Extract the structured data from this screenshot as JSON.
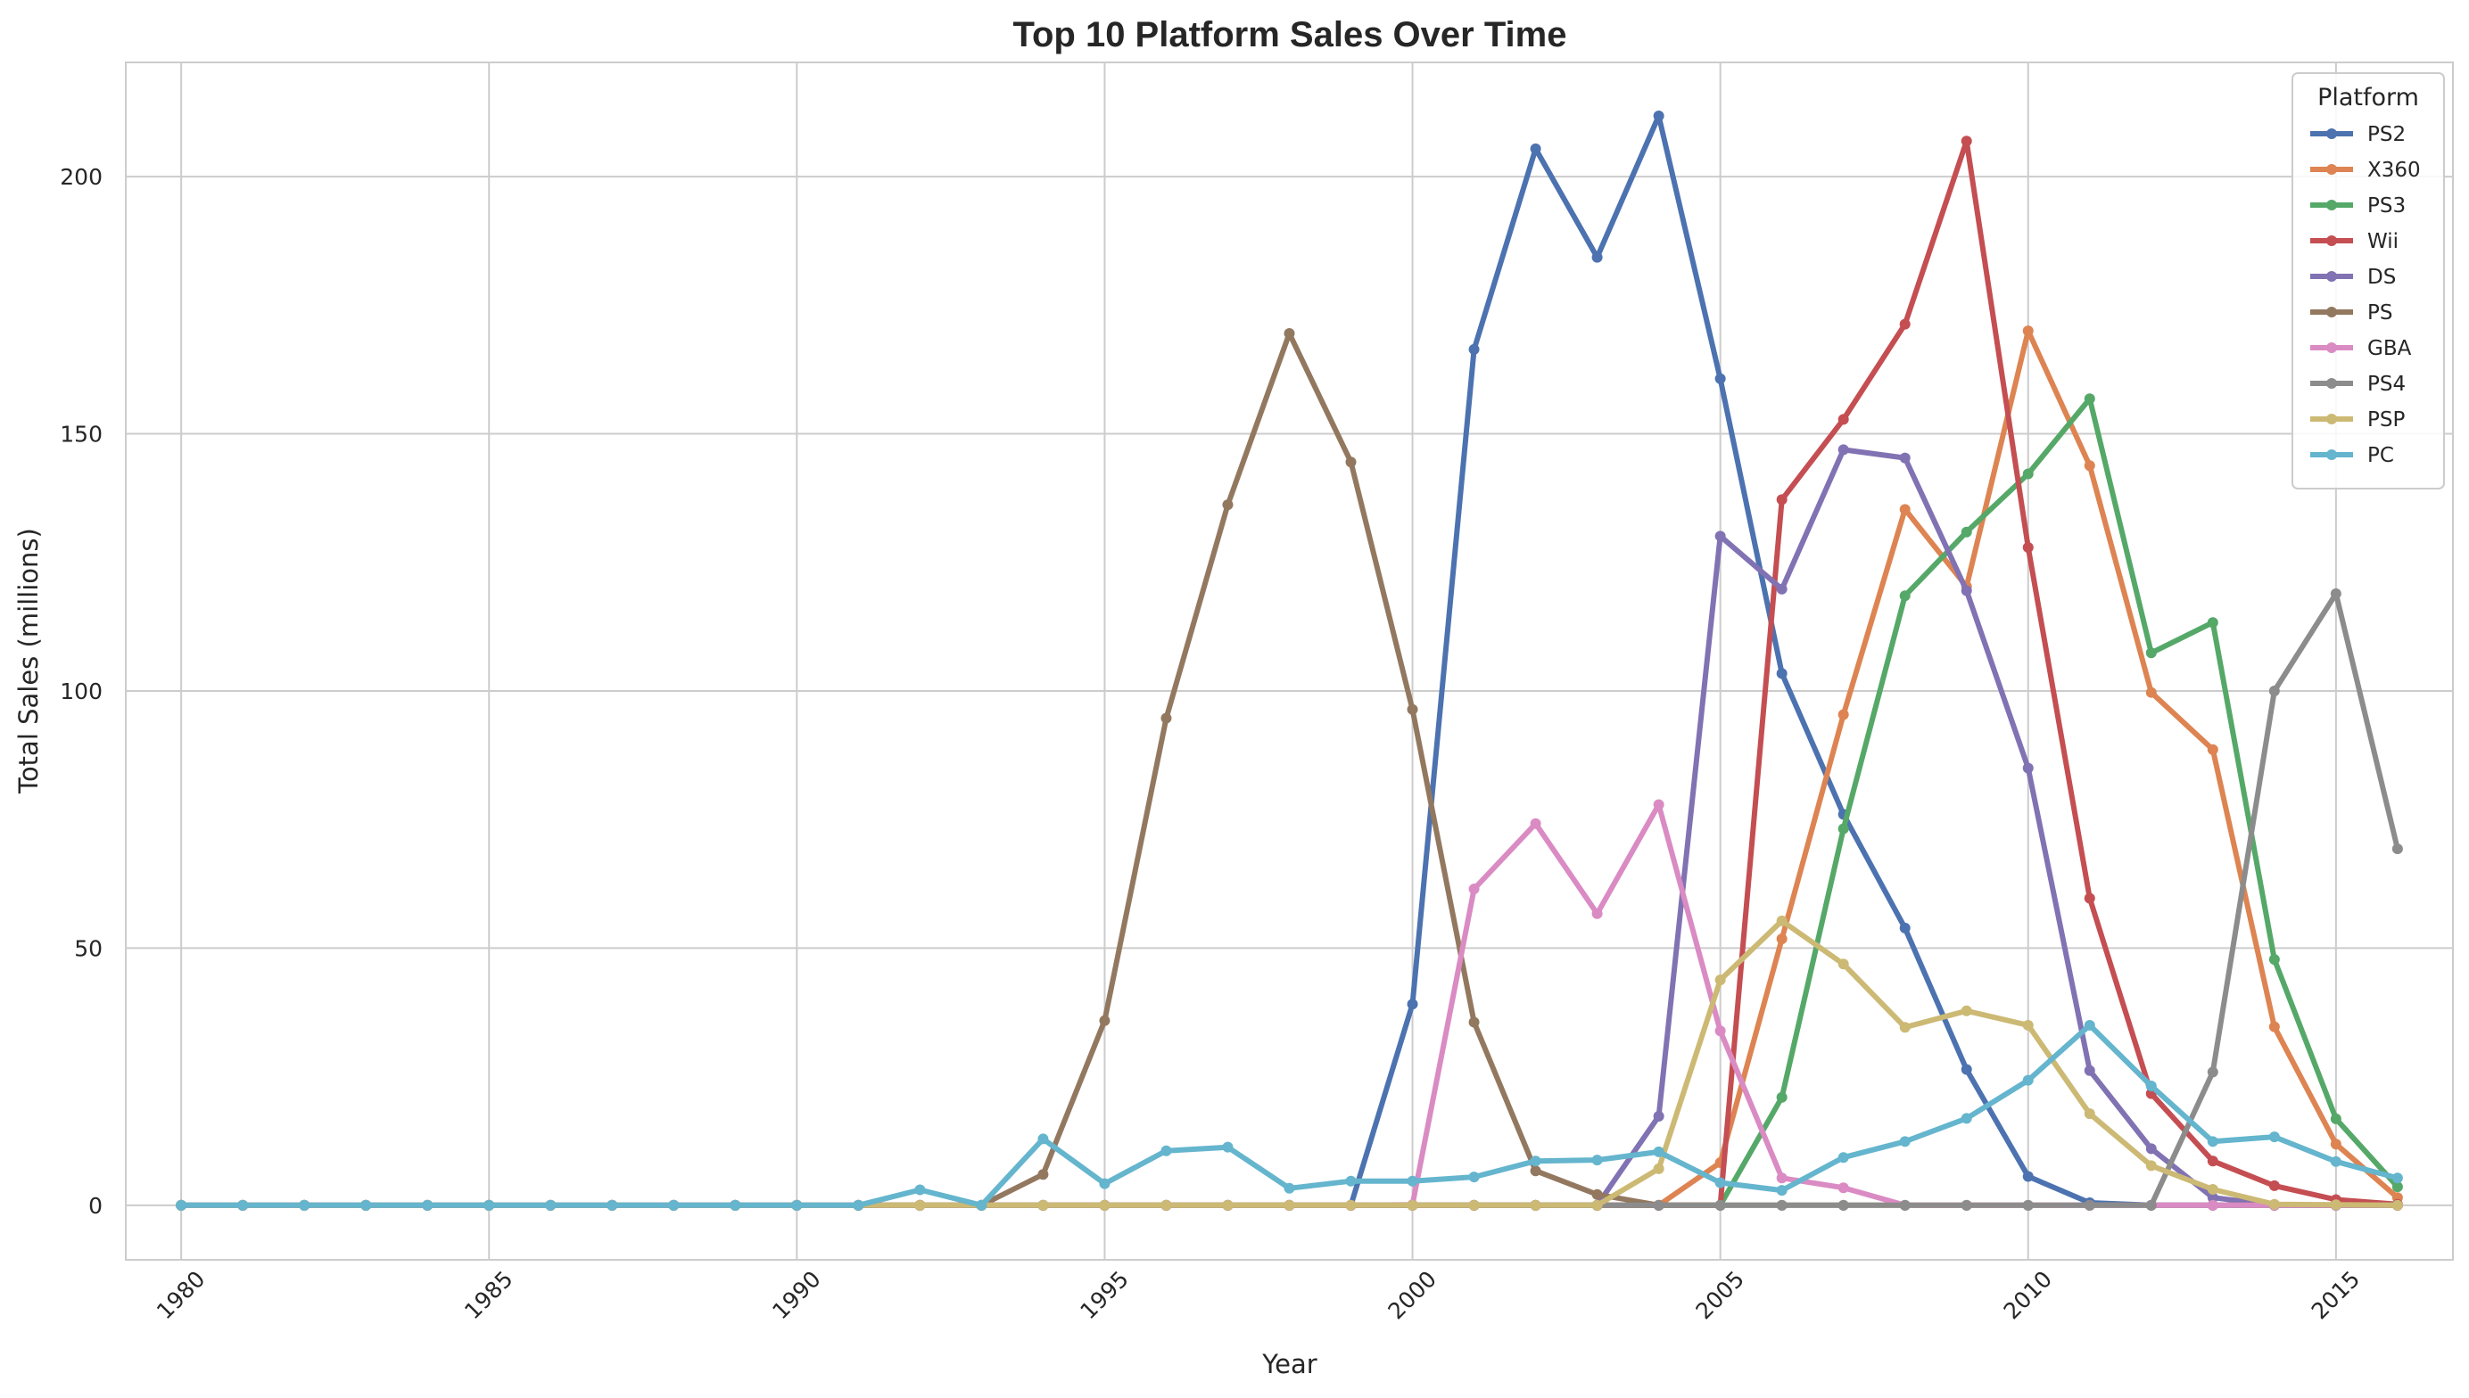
{
  "chart_data": {
    "type": "line",
    "title": "Top 10 Platform Sales Over Time",
    "xlabel": "Year",
    "ylabel": "Total Sales (millions)",
    "xlim": [
      1979.1,
      2016.9
    ],
    "ylim": [
      -10.6,
      222.2
    ],
    "xticks": [
      1980,
      1985,
      1990,
      1995,
      2000,
      2005,
      2010,
      2015
    ],
    "yticks": [
      0,
      50,
      100,
      150,
      200
    ],
    "grid": true,
    "legend": {
      "title": "Platform",
      "position": "top-right"
    },
    "x": [
      1980,
      1981,
      1982,
      1983,
      1984,
      1985,
      1986,
      1987,
      1988,
      1989,
      1990,
      1991,
      1992,
      1993,
      1994,
      1995,
      1996,
      1997,
      1998,
      1999,
      2000,
      2001,
      2002,
      2003,
      2004,
      2005,
      2006,
      2007,
      2008,
      2009,
      2010,
      2011,
      2012,
      2013,
      2014,
      2015,
      2016
    ],
    "series": [
      {
        "name": "PS2",
        "color": "#4c72b0",
        "values": [
          0,
          0,
          0,
          0,
          0,
          0,
          0,
          0,
          0,
          0,
          0,
          0,
          0,
          0,
          0,
          0,
          0,
          0,
          0,
          0,
          39.1,
          166.4,
          205.4,
          184.3,
          211.8,
          160.7,
          103.4,
          76.0,
          53.9,
          26.4,
          5.6,
          0.5,
          0,
          0,
          0,
          0,
          0
        ]
      },
      {
        "name": "X360",
        "color": "#dd8452",
        "values": [
          0,
          0,
          0,
          0,
          0,
          0,
          0,
          0,
          0,
          0,
          0,
          0,
          0,
          0,
          0,
          0,
          0,
          0,
          0,
          0,
          0,
          0,
          0,
          0,
          0,
          8.3,
          51.8,
          95.4,
          135.3,
          120.3,
          170.0,
          143.8,
          99.7,
          88.6,
          34.7,
          11.9,
          1.5
        ]
      },
      {
        "name": "PS3",
        "color": "#55a868",
        "values": [
          0,
          0,
          0,
          0,
          0,
          0,
          0,
          0,
          0,
          0,
          0,
          0,
          0,
          0,
          0,
          0,
          0,
          0,
          0,
          0,
          0,
          0,
          0,
          0,
          0,
          0,
          21.0,
          73.2,
          118.5,
          130.9,
          142.2,
          156.8,
          107.4,
          113.3,
          47.8,
          16.8,
          3.6
        ]
      },
      {
        "name": "Wii",
        "color": "#c44e52",
        "values": [
          0,
          0,
          0,
          0,
          0,
          0,
          0,
          0,
          0,
          0,
          0,
          0,
          0,
          0,
          0,
          0,
          0,
          0,
          0,
          0,
          0,
          0,
          0,
          0,
          0,
          0,
          137.2,
          152.8,
          171.3,
          206.9,
          127.9,
          59.7,
          21.7,
          8.6,
          3.8,
          1.1,
          0.2
        ]
      },
      {
        "name": "DS",
        "color": "#8172b3",
        "values": [
          0,
          0,
          0,
          0,
          0,
          0,
          0,
          0,
          0,
          0,
          0,
          0,
          0,
          0,
          0,
          0,
          0,
          0,
          0,
          0,
          0,
          0,
          0,
          0,
          17.3,
          130.1,
          119.8,
          146.9,
          145.3,
          119.5,
          85.0,
          26.2,
          11.0,
          1.5,
          0,
          0,
          0
        ]
      },
      {
        "name": "PS",
        "color": "#937860",
        "values": [
          0,
          0,
          0,
          0,
          0,
          0,
          0,
          0,
          0,
          0,
          0,
          0,
          0,
          0,
          6.0,
          35.9,
          94.7,
          136.2,
          169.5,
          144.5,
          96.4,
          35.6,
          6.7,
          2.1,
          0,
          0,
          0,
          0,
          0,
          0,
          0,
          0,
          0,
          0,
          0,
          0,
          0
        ]
      },
      {
        "name": "GBA",
        "color": "#da8bc3",
        "values": [
          0,
          0,
          0,
          0,
          0,
          0,
          0,
          0,
          0,
          0,
          0,
          0,
          0,
          0,
          0,
          0,
          0,
          0,
          0,
          0,
          0.1,
          61.5,
          74.2,
          56.7,
          77.9,
          33.9,
          5.3,
          3.4,
          0,
          0,
          0,
          0,
          0,
          0,
          0,
          0,
          0
        ]
      },
      {
        "name": "PS4",
        "color": "#8c8c8c",
        "values": [
          0,
          0,
          0,
          0,
          0,
          0,
          0,
          0,
          0,
          0,
          0,
          0,
          0,
          0,
          0,
          0,
          0,
          0,
          0,
          0,
          0,
          0,
          0,
          0,
          0,
          0,
          0,
          0,
          0,
          0,
          0,
          0,
          0,
          25.9,
          100.0,
          118.9,
          69.3
        ]
      },
      {
        "name": "PSP",
        "color": "#ccb974",
        "values": [
          0,
          0,
          0,
          0,
          0,
          0,
          0,
          0,
          0,
          0,
          0,
          0,
          0,
          0,
          0,
          0,
          0,
          0,
          0,
          0,
          0,
          0,
          0,
          0,
          7.1,
          43.8,
          55.3,
          46.9,
          34.6,
          37.8,
          35.0,
          17.8,
          7.7,
          3.1,
          0.2,
          0.1,
          0
        ]
      },
      {
        "name": "PC",
        "color": "#64b5cd",
        "values": [
          0,
          0,
          0,
          0,
          0,
          0,
          0,
          0,
          0,
          0,
          0,
          0,
          3.0,
          0,
          12.9,
          4.2,
          10.6,
          11.3,
          3.3,
          4.7,
          4.7,
          5.5,
          8.6,
          8.8,
          10.4,
          4.4,
          2.9,
          9.3,
          12.4,
          16.9,
          24.3,
          35.0,
          23.2,
          12.4,
          13.3,
          8.5,
          5.3
        ]
      }
    ]
  }
}
